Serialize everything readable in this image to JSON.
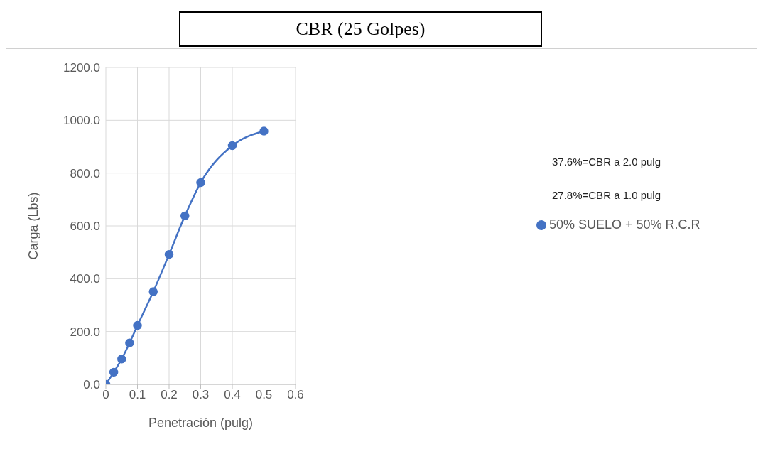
{
  "chart_data": {
    "type": "line",
    "title": "CBR (25 Golpes)",
    "xlabel": "Penetración (pulg)",
    "ylabel": "Carga (Lbs)",
    "x": [
      0,
      0.025,
      0.05,
      0.075,
      0.1,
      0.15,
      0.2,
      0.25,
      0.3,
      0.4,
      0.5
    ],
    "series": [
      {
        "name": "50% SUELO + 50% R.C.R",
        "color": "#4472c4",
        "values": [
          0,
          46,
          96,
          157,
          223,
          351,
          492,
          638,
          764,
          904,
          959
        ]
      }
    ],
    "xlim": [
      0,
      0.6
    ],
    "xticks": [
      0,
      0.1,
      0.2,
      0.3,
      0.4,
      0.5,
      0.6
    ],
    "ylim": [
      0,
      1200
    ],
    "yticks": [
      {
        "value": 0,
        "label": "0.0"
      },
      {
        "value": 200,
        "label": "200.0"
      },
      {
        "value": 400,
        "label": "400.0"
      },
      {
        "value": 600,
        "label": "600.0"
      },
      {
        "value": 800,
        "label": "800.0"
      },
      {
        "value": 1000,
        "label": "1000.0"
      },
      {
        "value": 1200,
        "label": "1200.0"
      }
    ],
    "annotations": [
      "37.6%=CBR a 2.0 pulg",
      "27.8%=CBR a 1.0 pulg"
    ],
    "grid": true,
    "legend": "right",
    "marker": "circle",
    "line_style": "solid"
  }
}
